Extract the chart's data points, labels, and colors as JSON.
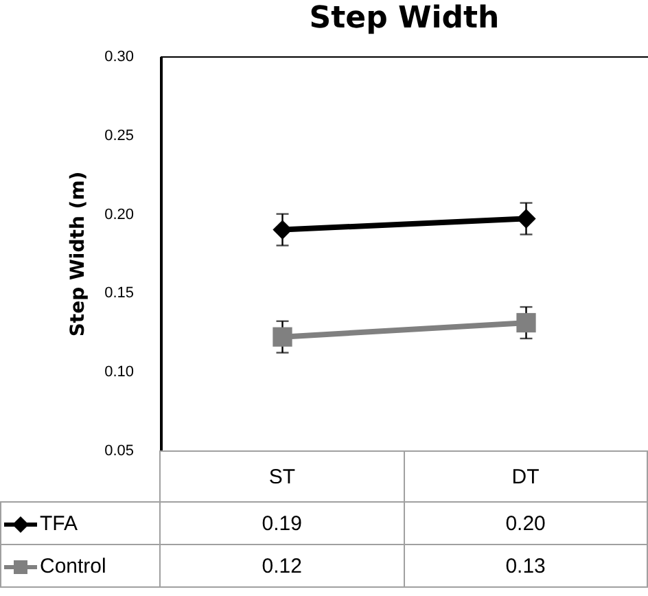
{
  "chart_data": {
    "type": "line",
    "title": "Step Width",
    "ylabel": "Step Width (m)",
    "categories": [
      "ST",
      "DT"
    ],
    "ylim": [
      0.05,
      0.3
    ],
    "yticks": [
      0.05,
      {
        "value": 0.1,
        "label": "0.10"
      },
      0.15,
      {
        "value": 0.2,
        "label": "0.20"
      },
      0.25,
      {
        "value": 0.3,
        "label": "0.30"
      }
    ],
    "legend": "bottom",
    "grid": false,
    "series": [
      {
        "name": "TFA",
        "color": "#000000",
        "marker": "diamond",
        "values": [
          0.19,
          0.197
        ],
        "errors": [
          0.01,
          0.01
        ],
        "value_labels": [
          "0.19",
          "0.20"
        ]
      },
      {
        "name": "Control",
        "color": "#808080",
        "marker": "square",
        "values": [
          0.122,
          0.131
        ],
        "errors": [
          0.01,
          0.01
        ],
        "value_labels": [
          "0.12",
          "0.13"
        ]
      }
    ]
  }
}
